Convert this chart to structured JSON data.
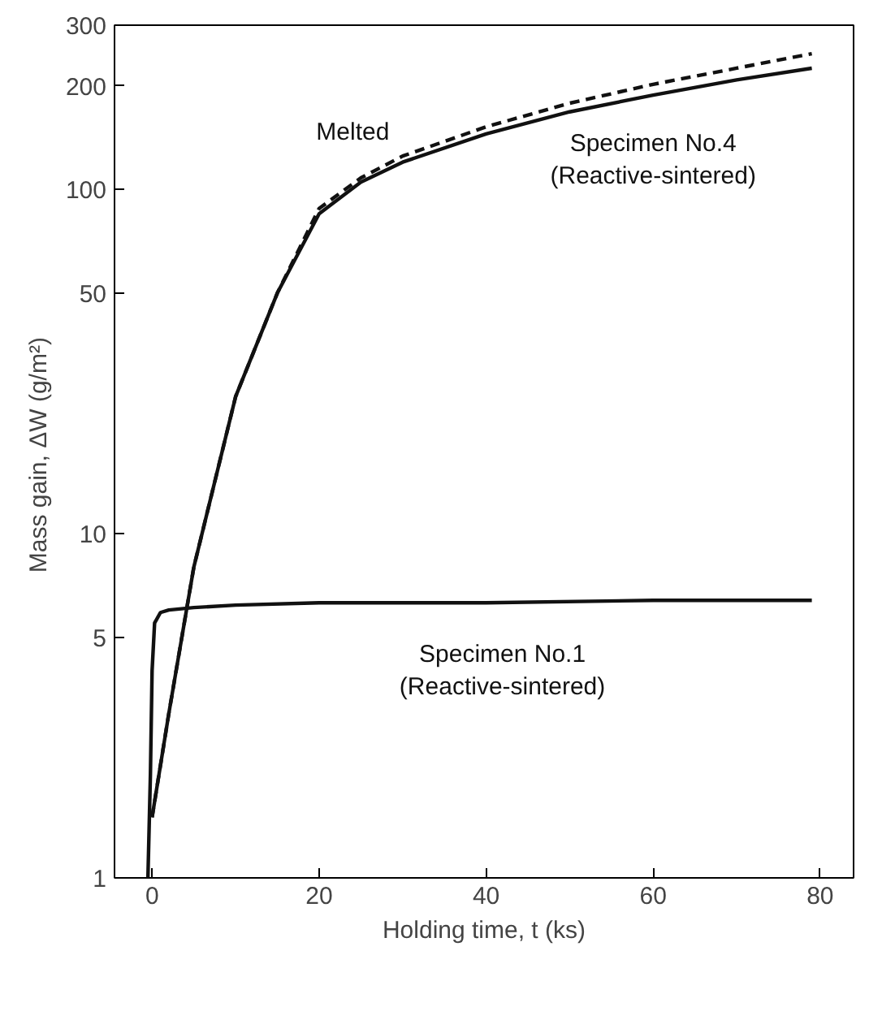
{
  "chart_data": {
    "type": "line",
    "xlabel": "Holding time, t (ks)",
    "ylabel": "Mass gain, ΔW  (g/m²)",
    "log": "y",
    "xlim": [
      -4.5,
      84
    ],
    "ylim": [
      1,
      300
    ],
    "xticks": [
      0,
      20,
      40,
      60,
      80
    ],
    "yticks": [
      1,
      5,
      10,
      50,
      100,
      200,
      300
    ],
    "grid": false,
    "series": [
      {
        "name": "Melted",
        "color": "#111111",
        "line_style": "dashed",
        "x": [
          0,
          2,
          5,
          10,
          15,
          20,
          25,
          30,
          40,
          50,
          60,
          70,
          79
        ],
        "values": [
          1.5,
          3,
          8,
          25,
          50,
          88,
          108,
          125,
          152,
          178,
          202,
          225,
          248
        ]
      },
      {
        "name": "Specimen No.4\n(Reactive-sintered)",
        "color": "#111111",
        "line_style": "solid",
        "x": [
          0,
          2,
          5,
          10,
          15,
          20,
          25,
          30,
          40,
          50,
          60,
          70,
          79
        ],
        "values": [
          1.5,
          3,
          8,
          25,
          50,
          85,
          105,
          120,
          145,
          168,
          188,
          208,
          225
        ]
      },
      {
        "name": "Specimen No.1\n(Reactive-sintered)",
        "color": "#111111",
        "line_style": "solid",
        "x": [
          -0.5,
          -0.2,
          0,
          0.3,
          1,
          2,
          5,
          10,
          20,
          40,
          60,
          79
        ],
        "values": [
          1,
          2,
          4,
          5.5,
          5.9,
          6,
          6.1,
          6.2,
          6.3,
          6.3,
          6.4,
          6.4
        ]
      }
    ]
  }
}
